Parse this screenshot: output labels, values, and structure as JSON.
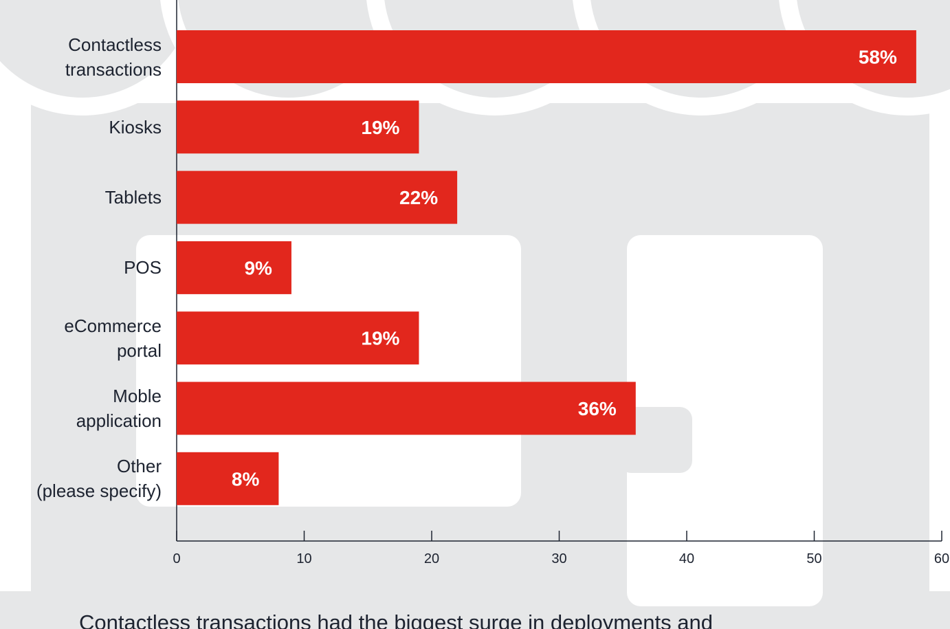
{
  "chart_data": {
    "type": "bar",
    "orientation": "horizontal",
    "categories": [
      "Contactless\ntransactions",
      "Kiosks",
      "Tablets",
      "POS",
      "eCommerce\nportal",
      "Moble\napplication",
      "Other\n(please specify)"
    ],
    "values": [
      58,
      19,
      22,
      9,
      19,
      36,
      8
    ],
    "value_labels": [
      "58%",
      "19%",
      "22%",
      "9%",
      "19%",
      "36%",
      "8%"
    ],
    "color": "#e2271d",
    "xlim": [
      0,
      60
    ],
    "xticks": [
      0,
      10,
      20,
      30,
      40,
      50,
      60
    ],
    "caption": "Contactless transactions had the biggest surge in deployments and"
  }
}
